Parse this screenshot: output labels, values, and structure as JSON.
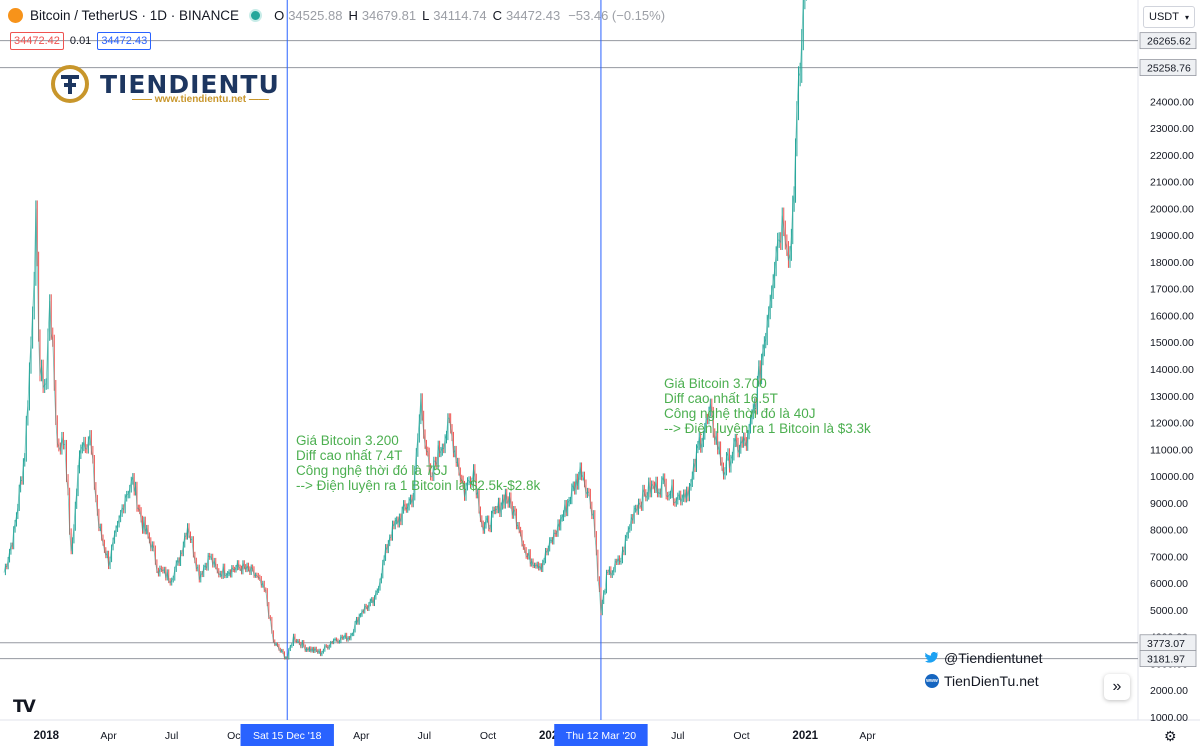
{
  "header": {
    "symbol": "Bitcoin / TetherUS · 1D · BINANCE",
    "o_label": "O",
    "o": "34525.88",
    "h_label": "H",
    "h": "34679.81",
    "l_label": "L",
    "l": "34114.74",
    "c_label": "C",
    "c": "34472.43",
    "change": "−53.46 (−0.15%)",
    "sell_price": "34472.42",
    "spread": "0.01",
    "buy_price": "34472.43"
  },
  "currency_selector": "USDT",
  "logo": {
    "name": "TIENDIENTU",
    "url": "www.tiendientu.net"
  },
  "annotations": [
    {
      "lines": [
        "Giá Bitcoin 3.200",
        "Diff cao nhất 7.4T",
        "Công nghệ thời đó là 75J",
        "--> Điện luyện ra 1 Bitcoin là $2.5k-$2.8k"
      ]
    },
    {
      "lines": [
        "Giá Bitcoin 3.700",
        "Diff cao nhất 16.5T",
        "Công nghệ thời đó là 40J",
        "--> Điện luyện ra 1 Bitcoin là $3.3k"
      ]
    }
  ],
  "social": {
    "twitter": "@Tiendientunet",
    "website": "TienDienTu.net"
  },
  "chart_data": {
    "type": "line",
    "title": "",
    "xlabel": "",
    "ylabel": "",
    "x_tick_labels": [
      "2018",
      "Apr",
      "Jul",
      "Oct",
      "Sat 15 Dec '18",
      "Apr",
      "Jul",
      "Oct",
      "2020",
      "Thu 12 Mar '20",
      "Jul",
      "Oct",
      "2021",
      "Apr"
    ],
    "y_tick_labels": [
      "1000.00",
      "2000.00",
      "3000.00",
      "4000.00",
      "5000.00",
      "6000.00",
      "7000.00",
      "8000.00",
      "9000.00",
      "10000.00",
      "11000.00",
      "12000.00",
      "13000.00",
      "14000.00",
      "15000.00",
      "16000.00",
      "17000.00",
      "18000.00",
      "19000.00",
      "20000.00",
      "21000.00",
      "22000.00",
      "23000.00",
      "24000.00"
    ],
    "ylim": [
      700,
      27600
    ],
    "price_levels": [
      "26265.62",
      "25258.76",
      "3773.07",
      "3181.97"
    ],
    "vertical_markers": [
      "2018-12-15",
      "2020-03-12"
    ],
    "series": [
      {
        "x": [
          "2017-11-01",
          "2017-11-15",
          "2017-12-01",
          "2017-12-10",
          "2017-12-17",
          "2017-12-23",
          "2018-01-01",
          "2018-01-06",
          "2018-01-17",
          "2018-01-28",
          "2018-02-06",
          "2018-02-20",
          "2018-03-05",
          "2018-03-18",
          "2018-04-01",
          "2018-04-14",
          "2018-04-25",
          "2018-05-06",
          "2018-05-20",
          "2018-06-01",
          "2018-06-12",
          "2018-06-29",
          "2018-07-10",
          "2018-07-24",
          "2018-08-10",
          "2018-08-25",
          "2018-09-05",
          "2018-09-20",
          "2018-10-10",
          "2018-10-30",
          "2018-11-14",
          "2018-11-25",
          "2018-12-07",
          "2018-12-15",
          "2018-12-24",
          "2019-01-10",
          "2019-02-01",
          "2019-02-20",
          "2019-03-15",
          "2019-04-02",
          "2019-04-20",
          "2019-05-12",
          "2019-05-30",
          "2019-06-15",
          "2019-06-26",
          "2019-07-10",
          "2019-07-17",
          "2019-08-06",
          "2019-08-28",
          "2019-09-10",
          "2019-09-24",
          "2019-10-10",
          "2019-10-26",
          "2019-11-15",
          "2019-11-25",
          "2019-12-17",
          "2020-01-10",
          "2020-02-13",
          "2020-03-01",
          "2020-03-12",
          "2020-03-20",
          "2020-04-10",
          "2020-04-29",
          "2020-05-20",
          "2020-06-10",
          "2020-07-01",
          "2020-07-20",
          "2020-08-01",
          "2020-08-17",
          "2020-09-05",
          "2020-09-20",
          "2020-10-10",
          "2020-10-22",
          "2020-11-05",
          "2020-11-20",
          "2020-12-01",
          "2020-12-10",
          "2020-12-20",
          "2020-12-27",
          "2021-01-05"
        ],
        "y": [
          6400,
          7800,
          10900,
          15000,
          19400,
          13800,
          13400,
          16800,
          11200,
          11300,
          7000,
          11300,
          11400,
          8100,
          6800,
          8000,
          9300,
          9800,
          8200,
          7500,
          6500,
          6200,
          6700,
          8200,
          6300,
          7000,
          6400,
          6500,
          6600,
          6300,
          5600,
          3800,
          3400,
          3200,
          4000,
          3600,
          3400,
          3900,
          4000,
          5000,
          5300,
          7800,
          8600,
          9300,
          12800,
          9700,
          10600,
          11900,
          9400,
          10300,
          8000,
          8500,
          9300,
          8200,
          7000,
          6700,
          8100,
          10300,
          8600,
          4900,
          6200,
          6900,
          8800,
          9500,
          9700,
          9200,
          9600,
          11300,
          12300,
          10200,
          11000,
          11300,
          12900,
          15500,
          18600,
          19700,
          18200,
          23100,
          26300,
          31500
        ]
      }
    ]
  }
}
